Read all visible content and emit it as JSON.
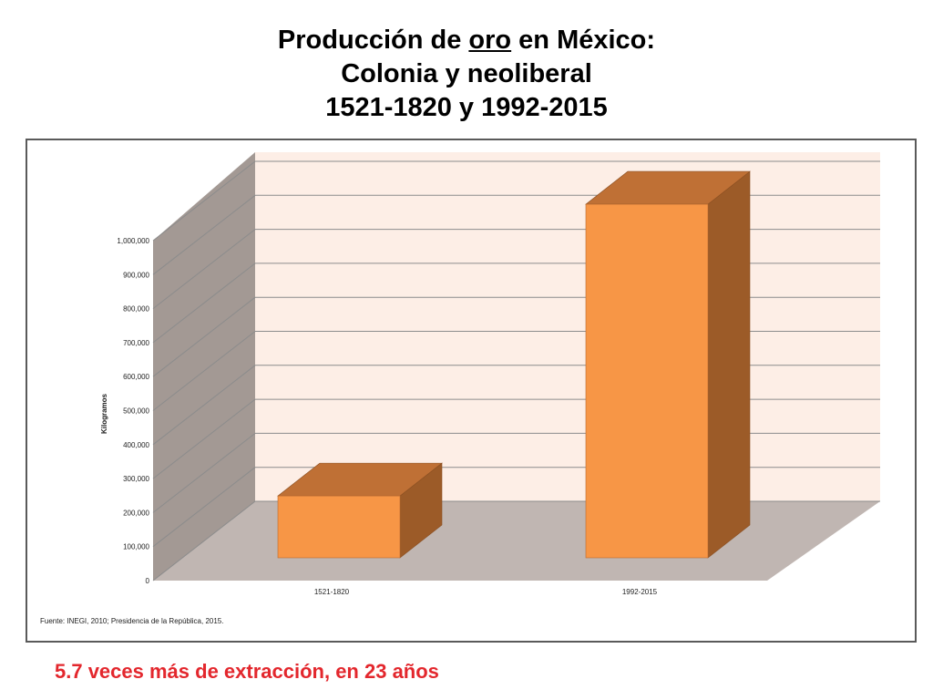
{
  "title": {
    "line1_pre": "Producción de ",
    "line1_word": "oro",
    "line1_post": " en México:",
    "line2": "Colonia y neoliberal",
    "line3": "1521-1820 y 1992-2015"
  },
  "caption": "5.7 veces más de extracción, en 23 años",
  "chart_data": {
    "type": "bar",
    "style": "3d-column",
    "categories": [
      "1521-1820",
      "1992-2015"
    ],
    "series": [
      {
        "name": "Kilogramos",
        "values": [
          182000,
          1040000
        ]
      }
    ],
    "ylabel": "Kilogramos",
    "xlabel": "",
    "yticks": [
      "0",
      "100,000",
      "200,000",
      "300,000",
      "400,000",
      "500,000",
      "600,000",
      "700,000",
      "800,000",
      "900,000",
      "1,000,000"
    ],
    "ylim": [
      0,
      1000000
    ],
    "grid": true,
    "legend": "none",
    "source": "Fuente: INEGI, 2010; Presidencia de la República, 2015.",
    "colors": {
      "bar_front": "#f79646",
      "bar_top": "#bf7035",
      "bar_side": "#9c5b28",
      "back_wall": "#fdeee6",
      "side_wall": "#a39994",
      "floor": "#c0b6b2"
    }
  }
}
